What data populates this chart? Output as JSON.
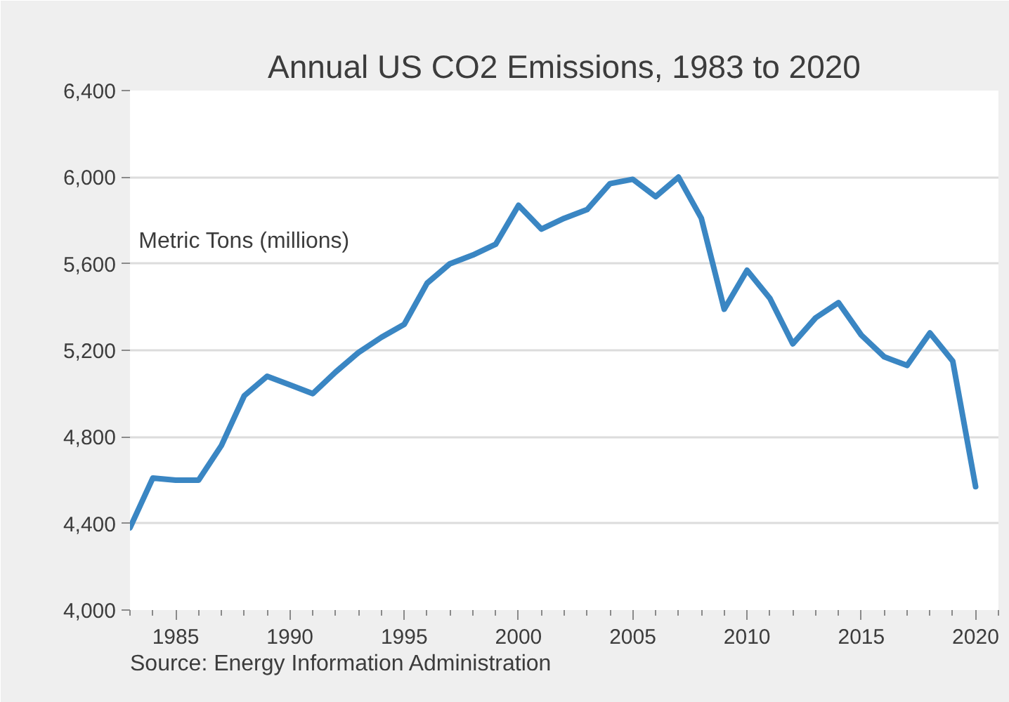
{
  "chart_data": {
    "type": "line",
    "title": "Annual US CO2 Emissions, 1983 to 2020",
    "ylabel": "Metric Tons (millions)",
    "x": [
      1983,
      1984,
      1985,
      1986,
      1987,
      1988,
      1989,
      1990,
      1991,
      1992,
      1993,
      1994,
      1995,
      1996,
      1997,
      1998,
      1999,
      2000,
      2001,
      2002,
      2003,
      2004,
      2005,
      2006,
      2007,
      2008,
      2009,
      2010,
      2011,
      2012,
      2013,
      2014,
      2015,
      2016,
      2017,
      2018,
      2019,
      2020
    ],
    "series": [
      {
        "color": "#3a86c3",
        "values": [
          4380,
          4610,
          4600,
          4600,
          4760,
          4990,
          5080,
          5040,
          5000,
          5100,
          5190,
          5260,
          5320,
          5510,
          5600,
          5640,
          5690,
          5870,
          5760,
          5810,
          5850,
          5970,
          5990,
          5910,
          6000,
          5810,
          5390,
          5570,
          5440,
          5230,
          5350,
          5420,
          5270,
          5170,
          5130,
          5280,
          5150,
          4570
        ]
      }
    ],
    "xlim": [
      1983,
      2021
    ],
    "ylim": [
      4000,
      6400
    ],
    "xticks": [
      {
        "value": 1983,
        "label": null
      },
      {
        "value": 1984,
        "label": null
      },
      1985,
      {
        "value": 1986,
        "label": null
      },
      {
        "value": 1987,
        "label": null
      },
      {
        "value": 1988,
        "label": null
      },
      {
        "value": 1989,
        "label": null
      },
      1990,
      {
        "value": 1991,
        "label": null
      },
      {
        "value": 1992,
        "label": null
      },
      {
        "value": 1993,
        "label": null
      },
      {
        "value": 1994,
        "label": null
      },
      1995,
      {
        "value": 1996,
        "label": null
      },
      {
        "value": 1997,
        "label": null
      },
      {
        "value": 1998,
        "label": null
      },
      {
        "value": 1999,
        "label": null
      },
      2000,
      {
        "value": 2001,
        "label": null
      },
      {
        "value": 2002,
        "label": null
      },
      {
        "value": 2003,
        "label": null
      },
      {
        "value": 2004,
        "label": null
      },
      2005,
      {
        "value": 2006,
        "label": null
      },
      {
        "value": 2007,
        "label": null
      },
      {
        "value": 2008,
        "label": null
      },
      {
        "value": 2009,
        "label": null
      },
      2010,
      {
        "value": 2011,
        "label": null
      },
      {
        "value": 2012,
        "label": null
      },
      {
        "value": 2013,
        "label": null
      },
      {
        "value": 2014,
        "label": null
      },
      2015,
      {
        "value": 2016,
        "label": null
      },
      {
        "value": 2017,
        "label": null
      },
      {
        "value": 2018,
        "label": null
      },
      {
        "value": 2019,
        "label": null
      },
      2020,
      {
        "value": 2021,
        "label": null
      }
    ],
    "yticks": [
      {
        "value": 4000,
        "label": "4,000"
      },
      {
        "value": 4400,
        "label": "4,400"
      },
      {
        "value": 4800,
        "label": "4,800"
      },
      {
        "value": 5200,
        "label": "5,200"
      },
      {
        "value": 5600,
        "label": "5,600"
      },
      {
        "value": 6000,
        "label": "6,000"
      },
      {
        "value": 6400,
        "label": "6,400"
      }
    ],
    "grid": "y",
    "annotations": [
      "Source: Energy Information Administration"
    ]
  }
}
